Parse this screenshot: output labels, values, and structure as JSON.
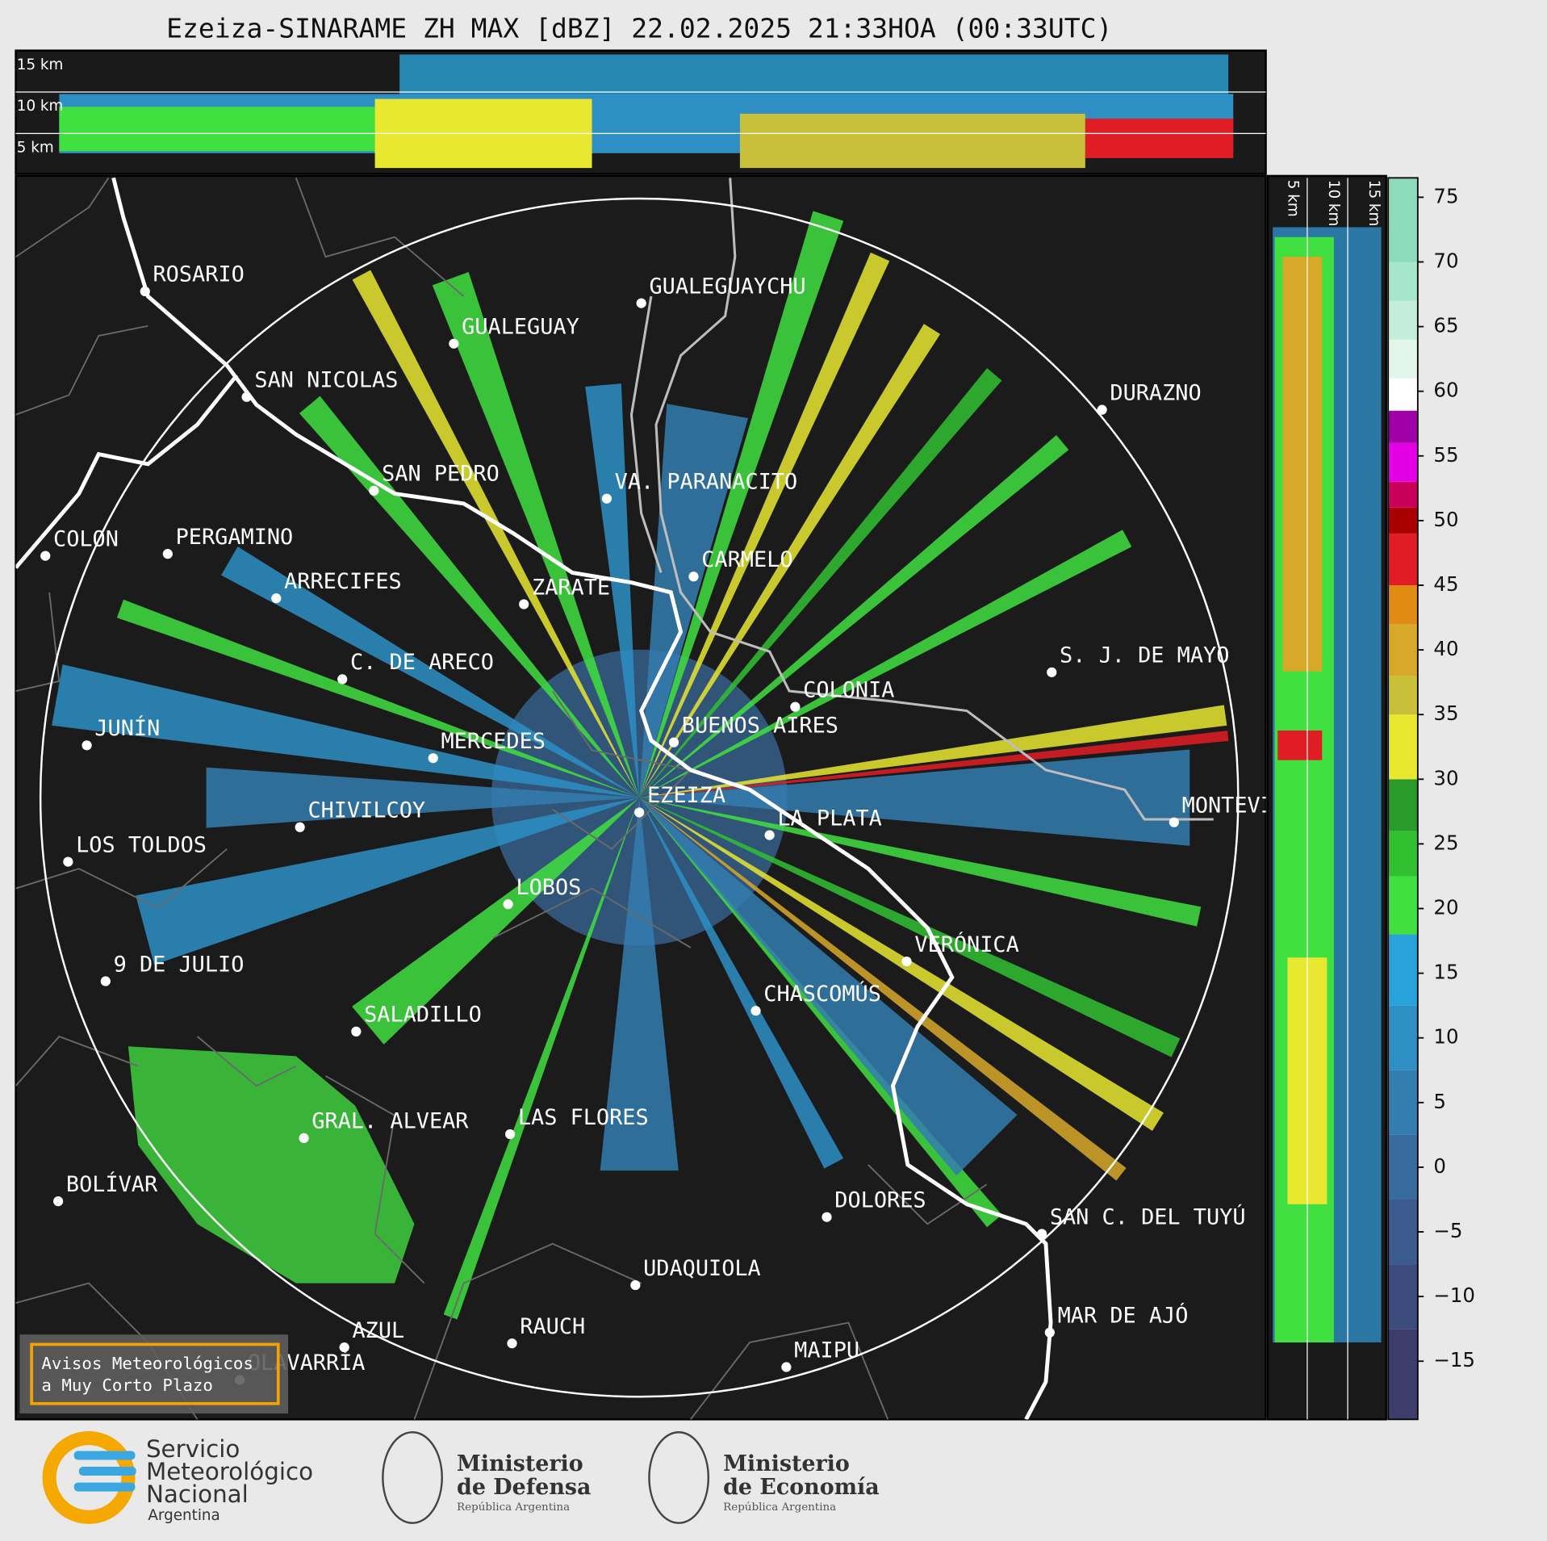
{
  "header": {
    "title": "Ezeiza-SINARAME ZH MAX [dBZ] 22.02.2025 21:33HOA (00:33UTC)"
  },
  "top_panel": {
    "height_labels": [
      "15 km",
      "10 km",
      "5 km"
    ]
  },
  "side_panel": {
    "height_labels": [
      "5 km",
      "10 km",
      "15 km"
    ]
  },
  "map": {
    "cities": [
      "ROSARIO",
      "GUALEGUAYCHU",
      "GUALEGUAY",
      "SAN NICOLAS",
      "DURAZNO",
      "SAN PEDRO",
      "VA. PARANACITO",
      "COLON",
      "PERGAMINO",
      "CARMELO",
      "ARRECIFES",
      "ZARATE",
      "S. J. DE MAYO",
      "C. DE ARECO",
      "COLONIA",
      "BUENOS AIRES",
      "JUNÍN",
      "MERCEDES",
      "EZEIZA",
      "MONTEVIDEO",
      "CHIVILCOY",
      "LA PLATA",
      "LOS TOLDOS",
      "LOBOS",
      "VERÓNICA",
      "9 DE JULIO",
      "CHASCOMÚS",
      "SALADILLO",
      "GRAL. ALVEAR",
      "LAS FLORES",
      "BOLÍVAR",
      "DOLORES",
      "SAN C. DEL TUYÚ",
      "UDAQUIOLA",
      "MAR DE AJÓ",
      "AZUL",
      "RAUCH",
      "OLAVARRÍA",
      "MAIPU"
    ]
  },
  "warning_box": {
    "lines": [
      "Avisos Meteorológicos",
      "a Muy Corto Plazo"
    ]
  },
  "colorbar": {
    "clim": [
      -19.5,
      76.5
    ],
    "ticks": [
      75,
      70,
      65,
      60,
      55,
      50,
      45,
      40,
      35,
      30,
      25,
      20,
      15,
      10,
      5,
      0,
      {
        "value": -5,
        "label": "−5"
      },
      {
        "value": -10,
        "label": "−10"
      },
      {
        "value": -15,
        "label": "−15"
      }
    ],
    "colorscale": [
      {
        "value": -19.5,
        "color": "#3c3d6a"
      },
      {
        "value": -12.5,
        "color": "#3c4c7c"
      },
      {
        "value": -7.5,
        "color": "#3b5b8e"
      },
      {
        "value": -2.5,
        "color": "#386c9e"
      },
      {
        "value": 2.5,
        "color": "#347db0"
      },
      {
        "value": 7.5,
        "color": "#2d8fc4"
      },
      {
        "value": 12.5,
        "color": "#28a2d8"
      },
      {
        "value": 18,
        "color": "#40e040"
      },
      {
        "value": 22.5,
        "color": "#30c030"
      },
      {
        "value": 26,
        "color": "#2a9a2a"
      },
      {
        "value": 30,
        "color": "#e8e830"
      },
      {
        "value": 35,
        "color": "#c8c038"
      },
      {
        "value": 38,
        "color": "#d8a828"
      },
      {
        "value": 42,
        "color": "#e08c14"
      },
      {
        "value": 45,
        "color": "#e01c24"
      },
      {
        "value": 49,
        "color": "#a80000"
      },
      {
        "value": 51,
        "color": "#c8005a"
      },
      {
        "value": 53,
        "color": "#e400e4"
      },
      {
        "value": 56,
        "color": "#a000a8"
      },
      {
        "value": 58.5,
        "color": "#ffffff"
      },
      {
        "value": 61,
        "color": "#e2f6ec"
      },
      {
        "value": 64,
        "color": "#c4eedc"
      },
      {
        "value": 67,
        "color": "#a6e6cc"
      },
      {
        "value": 70,
        "color": "#8cdcbc"
      }
    ]
  },
  "logos": {
    "smn": [
      "Servicio",
      "Meteorológico",
      "Nacional",
      "Argentina"
    ],
    "defensa": [
      "Ministerio",
      "de Defensa",
      "República Argentina"
    ],
    "economia": [
      "Ministerio",
      "de Economía",
      "República Argentina"
    ]
  }
}
